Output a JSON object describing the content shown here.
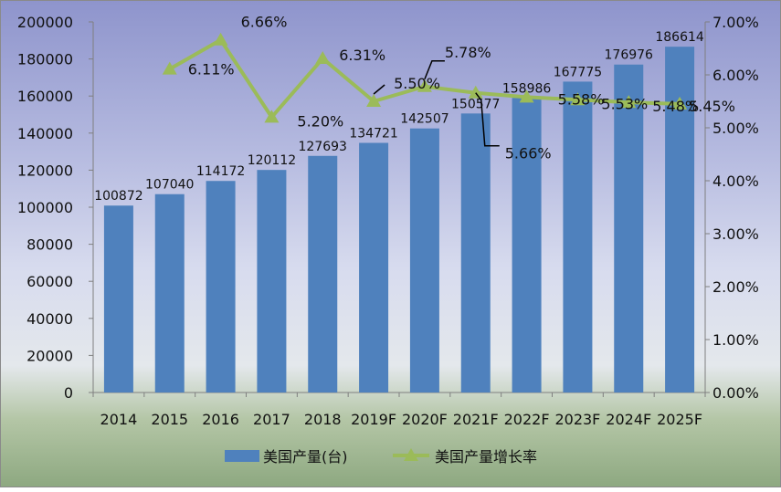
{
  "chart_data": {
    "type": "bar",
    "categories": [
      "2014",
      "2015",
      "2016",
      "2017",
      "2018",
      "2019F",
      "2020F",
      "2021F",
      "2022F",
      "2023F",
      "2024F",
      "2025F"
    ],
    "series": [
      {
        "name": "美国产量(台)",
        "type": "bar",
        "axis": "left",
        "color": "#4f81bd",
        "values": [
          100872,
          107040,
          114172,
          120112,
          127693,
          134721,
          142507,
          150577,
          158986,
          167775,
          176976,
          186614
        ],
        "labels": [
          "100872",
          "107040",
          "114172",
          "120112",
          "127693",
          "134721",
          "142507",
          "150577",
          "158986",
          "167775",
          "176976",
          "186614"
        ]
      },
      {
        "name": "美国产量增长率",
        "type": "line",
        "axis": "right",
        "marker": "triangle",
        "color": "#9bbb59",
        "values": [
          null,
          6.11,
          6.66,
          5.2,
          6.31,
          5.5,
          5.78,
          5.66,
          5.58,
          5.53,
          5.48,
          5.45
        ],
        "labels": [
          "",
          "6.11%",
          "6.66%",
          "5.20%",
          "6.31%",
          "5.50%",
          "5.78%",
          "5.66%",
          "5.58%",
          "5.53%",
          "5.48%",
          "5.45%"
        ]
      }
    ],
    "y_left": {
      "min": 0,
      "max": 200000,
      "ticks": [
        "0",
        "20000",
        "40000",
        "60000",
        "80000",
        "100000",
        "120000",
        "140000",
        "160000",
        "180000",
        "200000"
      ]
    },
    "y_right": {
      "min": 0,
      "max": 7,
      "ticks": [
        "0.00%",
        "1.00%",
        "2.00%",
        "3.00%",
        "4.00%",
        "5.00%",
        "6.00%",
        "7.00%"
      ]
    },
    "title": "",
    "xlabel": "",
    "ylabel": "",
    "grid": false,
    "legend_position": "bottom"
  }
}
